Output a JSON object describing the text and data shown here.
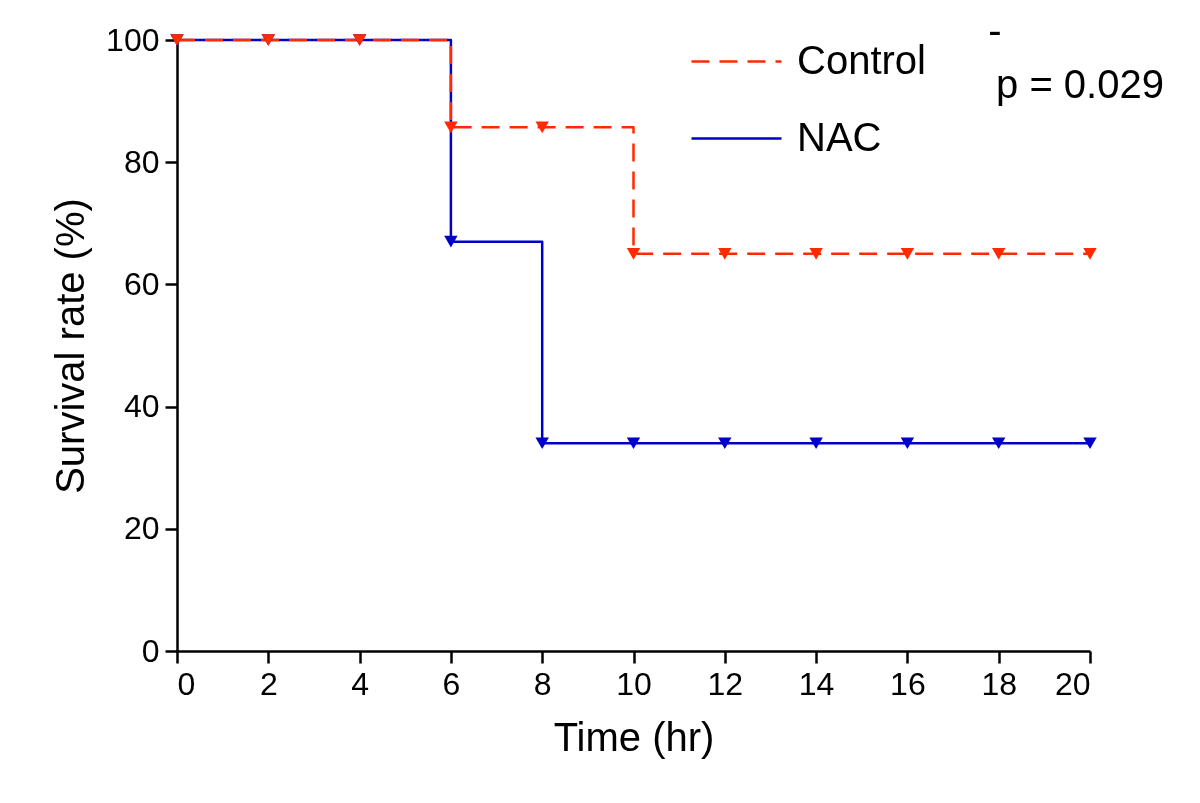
{
  "chart_data": {
    "type": "step",
    "xlabel": "Time (hr)",
    "ylabel": "Survival rate (%)",
    "x": [
      0,
      2,
      4,
      6,
      8,
      10,
      12,
      14,
      16,
      18,
      20
    ],
    "series": [
      {
        "name": "Control",
        "color": "#ff2a00",
        "line_style": "dashed",
        "values": [
          100,
          100,
          100,
          85.7,
          85.7,
          65,
          65,
          65,
          65,
          65,
          65
        ]
      },
      {
        "name": "NAC",
        "color": "#0000c8",
        "line_style": "solid",
        "values": [
          100,
          100,
          100,
          67,
          34,
          34,
          34,
          34,
          34,
          34,
          34
        ]
      }
    ],
    "xlim": [
      0,
      20
    ],
    "xticks": [
      0,
      2,
      4,
      6,
      8,
      10,
      12,
      14,
      16,
      18,
      20
    ],
    "ylim": [
      0,
      100
    ],
    "yticks": [
      0,
      20,
      40,
      60,
      80,
      100
    ],
    "grid": false,
    "legend": "top right",
    "marker": "triangle",
    "annotations": [
      "-",
      "p = 0.029"
    ]
  }
}
